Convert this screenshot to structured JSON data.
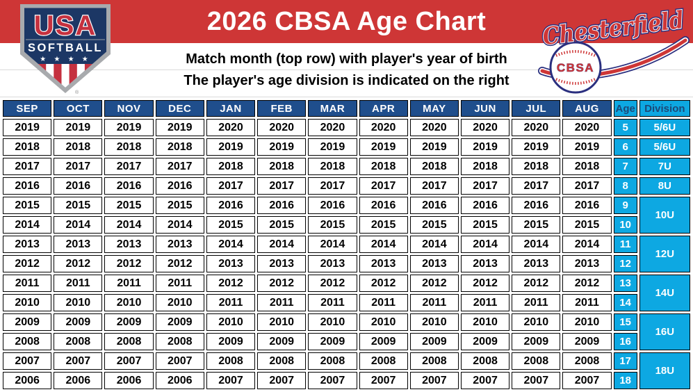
{
  "header": {
    "title": "2026 CBSA Age Chart",
    "instruction1": "Match month (top row) with player's year of birth",
    "instruction2": "The player's age division is indicated on the right"
  },
  "logos": {
    "usa_softball": {
      "line1": "USA",
      "line2": "SOFTBALL",
      "stars": "★ ★ ★ ★",
      "registered": "®"
    },
    "chesterfield": {
      "script": "Chesterfield",
      "ball_text": "CBSA"
    }
  },
  "colors": {
    "banner_red": "#CE3636",
    "table_header_navy": "#1F4E8C",
    "accent_cyan": "#0DA8E2",
    "cyan_header_text_navy": "#1B4978",
    "year_text": "#000000"
  },
  "chart_data": {
    "type": "table",
    "title": "2026 CBSA Age Chart",
    "month_columns": [
      "SEP",
      "OCT",
      "NOV",
      "DEC",
      "JAN",
      "FEB",
      "MAR",
      "APR",
      "MAY",
      "JUN",
      "JUL",
      "AUG"
    ],
    "age_column": "Age",
    "division_column": "Division",
    "rows": [
      {
        "years": [
          "2019",
          "2019",
          "2019",
          "2019",
          "2020",
          "2020",
          "2020",
          "2020",
          "2020",
          "2020",
          "2020",
          "2020"
        ],
        "age": "5",
        "division": "5/6U",
        "division_rowspan": 1
      },
      {
        "years": [
          "2018",
          "2018",
          "2018",
          "2018",
          "2019",
          "2019",
          "2019",
          "2019",
          "2019",
          "2019",
          "2019",
          "2019"
        ],
        "age": "6",
        "division": "5/6U",
        "division_rowspan": 1
      },
      {
        "years": [
          "2017",
          "2017",
          "2017",
          "2017",
          "2018",
          "2018",
          "2018",
          "2018",
          "2018",
          "2018",
          "2018",
          "2018"
        ],
        "age": "7",
        "division": "7U",
        "division_rowspan": 1
      },
      {
        "years": [
          "2016",
          "2016",
          "2016",
          "2016",
          "2017",
          "2017",
          "2017",
          "2017",
          "2017",
          "2017",
          "2017",
          "2017"
        ],
        "age": "8",
        "division": "8U",
        "division_rowspan": 1
      },
      {
        "years": [
          "2015",
          "2015",
          "2015",
          "2015",
          "2016",
          "2016",
          "2016",
          "2016",
          "2016",
          "2016",
          "2016",
          "2016"
        ],
        "age": "9",
        "division": "10U",
        "division_rowspan": 2
      },
      {
        "years": [
          "2014",
          "2014",
          "2014",
          "2014",
          "2015",
          "2015",
          "2015",
          "2015",
          "2015",
          "2015",
          "2015",
          "2015"
        ],
        "age": "10",
        "division": null
      },
      {
        "years": [
          "2013",
          "2013",
          "2013",
          "2013",
          "2014",
          "2014",
          "2014",
          "2014",
          "2014",
          "2014",
          "2014",
          "2014"
        ],
        "age": "11",
        "division": "12U",
        "division_rowspan": 2
      },
      {
        "years": [
          "2012",
          "2012",
          "2012",
          "2012",
          "2013",
          "2013",
          "2013",
          "2013",
          "2013",
          "2013",
          "2013",
          "2013"
        ],
        "age": "12",
        "division": null
      },
      {
        "years": [
          "2011",
          "2011",
          "2011",
          "2011",
          "2012",
          "2012",
          "2012",
          "2012",
          "2012",
          "2012",
          "2012",
          "2012"
        ],
        "age": "13",
        "division": "14U",
        "division_rowspan": 2
      },
      {
        "years": [
          "2010",
          "2010",
          "2010",
          "2010",
          "2011",
          "2011",
          "2011",
          "2011",
          "2011",
          "2011",
          "2011",
          "2011"
        ],
        "age": "14",
        "division": null
      },
      {
        "years": [
          "2009",
          "2009",
          "2009",
          "2009",
          "2010",
          "2010",
          "2010",
          "2010",
          "2010",
          "2010",
          "2010",
          "2010"
        ],
        "age": "15",
        "division": "16U",
        "division_rowspan": 2
      },
      {
        "years": [
          "2008",
          "2008",
          "2008",
          "2008",
          "2009",
          "2009",
          "2009",
          "2009",
          "2009",
          "2009",
          "2009",
          "2009"
        ],
        "age": "16",
        "division": null
      },
      {
        "years": [
          "2007",
          "2007",
          "2007",
          "2007",
          "2008",
          "2008",
          "2008",
          "2008",
          "2008",
          "2008",
          "2008",
          "2008"
        ],
        "age": "17",
        "division": "18U",
        "division_rowspan": 2
      },
      {
        "years": [
          "2006",
          "2006",
          "2006",
          "2006",
          "2007",
          "2007",
          "2007",
          "2007",
          "2007",
          "2007",
          "2007",
          "2007"
        ],
        "age": "18",
        "division": null
      }
    ]
  }
}
